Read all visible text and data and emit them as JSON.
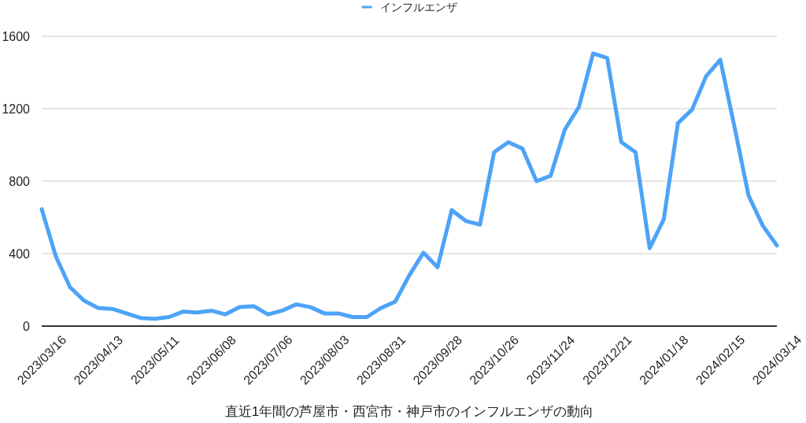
{
  "chart_data": {
    "type": "line",
    "xlabel": "直近1年間の芦屋市・西宮市・神戸市のインフルエンザの動向",
    "categories": [
      "2023/03/16",
      null,
      null,
      null,
      "2023/04/13",
      null,
      null,
      null,
      "2023/05/11",
      null,
      null,
      null,
      "2023/06/08",
      null,
      null,
      null,
      "2023/07/06",
      null,
      null,
      null,
      "2023/08/03",
      null,
      null,
      null,
      "2023/08/31",
      null,
      null,
      null,
      "2023/09/28",
      null,
      null,
      null,
      "2023/10/26",
      null,
      null,
      null,
      "2023/11/24",
      null,
      null,
      null,
      "2023/12/21",
      null,
      null,
      null,
      "2024/01/18",
      null,
      null,
      null,
      "2024/02/15",
      null,
      null,
      null,
      "2024/03/14"
    ],
    "series": [
      {
        "name": "インフルエンザ",
        "color": "#4da3f7",
        "values": [
          645,
          385,
          215,
          140,
          100,
          95,
          70,
          45,
          40,
          50,
          80,
          75,
          85,
          65,
          105,
          110,
          65,
          85,
          120,
          105,
          70,
          70,
          50,
          50,
          100,
          135,
          280,
          405,
          325,
          640,
          580,
          560,
          960,
          1015,
          980,
          800,
          830,
          1085,
          1210,
          1505,
          1480,
          1015,
          960,
          430,
          590,
          1120,
          1195,
          1380,
          1470,
          1100,
          720,
          555,
          445
        ]
      }
    ],
    "ylim": [
      0,
      1600
    ],
    "yticks": [
      0,
      400,
      800,
      1200,
      1600
    ],
    "grid": "y",
    "legend": "top"
  }
}
